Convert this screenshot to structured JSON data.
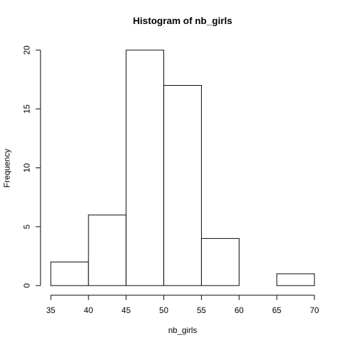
{
  "chart_data": {
    "type": "bar",
    "title": "Histogram of nb_girls",
    "xlabel": "nb_girls",
    "ylabel": "Frequency",
    "bins": [
      {
        "start": 35,
        "end": 40,
        "count": 2
      },
      {
        "start": 40,
        "end": 45,
        "count": 6
      },
      {
        "start": 45,
        "end": 50,
        "count": 20
      },
      {
        "start": 50,
        "end": 55,
        "count": 17
      },
      {
        "start": 55,
        "end": 60,
        "count": 4
      },
      {
        "start": 60,
        "end": 65,
        "count": 0
      },
      {
        "start": 65,
        "end": 70,
        "count": 1
      }
    ],
    "x_ticks": [
      "35",
      "40",
      "45",
      "50",
      "55",
      "60",
      "65",
      "70"
    ],
    "y_ticks": [
      "0",
      "5",
      "10",
      "15",
      "20"
    ],
    "xlim": [
      35,
      70
    ],
    "ylim": [
      0,
      20
    ],
    "grid": false,
    "legend": "none"
  }
}
